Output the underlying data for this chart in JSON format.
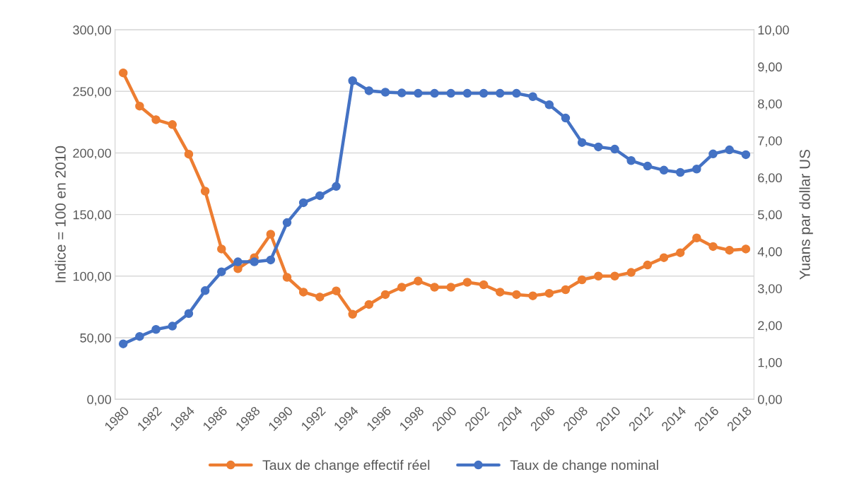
{
  "chart_data": {
    "type": "line",
    "ylabel": "Indice = 100 en 2010",
    "y2label": "Yuans par dollar US",
    "categories": [
      "1980",
      null,
      "1982",
      null,
      "1984",
      null,
      "1986",
      null,
      "1988",
      null,
      "1990",
      null,
      "1992",
      null,
      "1994",
      null,
      "1996",
      null,
      "1998",
      null,
      "2000",
      null,
      "2002",
      null,
      "2004",
      null,
      "2006",
      null,
      "2008",
      null,
      "2010",
      null,
      "2012",
      null,
      "2014",
      null,
      "2016",
      null,
      "2018"
    ],
    "series": [
      {
        "name": "Taux de change effectif réel",
        "color": "#ed7d31",
        "values": [
          265,
          238,
          227,
          223,
          199,
          169,
          122,
          106,
          115,
          134,
          99,
          87,
          83,
          88,
          69,
          77,
          85,
          91,
          96,
          91,
          91,
          95,
          93,
          87,
          85,
          84,
          86,
          89,
          97,
          100,
          100,
          103,
          109,
          115,
          119,
          131,
          124,
          121,
          122
        ]
      },
      {
        "name": "Taux de change nominal",
        "color": "#4472c4",
        "axis": "y2",
        "values": [
          1.5,
          1.7,
          1.89,
          1.98,
          2.32,
          2.94,
          3.45,
          3.72,
          3.72,
          3.77,
          4.78,
          5.32,
          5.51,
          5.76,
          8.62,
          8.35,
          8.31,
          8.29,
          8.28,
          8.28,
          8.28,
          8.28,
          8.28,
          8.28,
          8.28,
          8.19,
          7.97,
          7.61,
          6.95,
          6.83,
          6.77,
          6.46,
          6.31,
          6.2,
          6.14,
          6.23,
          6.64,
          6.75,
          6.62
        ]
      }
    ],
    "ylim": [
      0,
      300
    ],
    "yticks": [
      {
        "value": 0,
        "label": "0,00"
      },
      {
        "value": 50,
        "label": "50,00"
      },
      {
        "value": 100,
        "label": "100,00"
      },
      {
        "value": 150,
        "label": "150,00"
      },
      {
        "value": 200,
        "label": "200,00"
      },
      {
        "value": 250,
        "label": "250,00"
      },
      {
        "value": 300,
        "label": "300,00"
      }
    ],
    "y2lim": [
      0,
      10
    ],
    "y2ticks": [
      {
        "value": 0,
        "label": "0,00"
      },
      {
        "value": 1,
        "label": "1,00"
      },
      {
        "value": 2,
        "label": "2,00"
      },
      {
        "value": 3,
        "label": "3,00"
      },
      {
        "value": 4,
        "label": "4,00"
      },
      {
        "value": 5,
        "label": "5,00"
      },
      {
        "value": 6,
        "label": "6,00"
      },
      {
        "value": 7,
        "label": "7,00"
      },
      {
        "value": 8,
        "label": "8,00"
      },
      {
        "value": 9,
        "label": "9,00"
      },
      {
        "value": 10,
        "label": "10,00"
      }
    ],
    "grid": "y",
    "legend": "bottom",
    "marker": "circle",
    "line_style": "solid"
  }
}
